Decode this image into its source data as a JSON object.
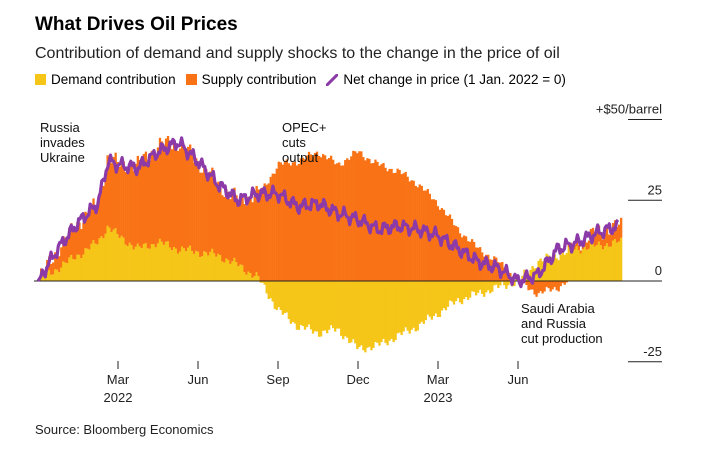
{
  "title": "What Drives Oil Prices",
  "subtitle": "Contribution of demand and supply shocks to the change in the price of oil",
  "legend": {
    "demand": "Demand contribution",
    "supply": "Supply contribution",
    "net": "Net change in price (1 Jan. 2022 = 0)"
  },
  "source": "Source: Bloomberg Economics",
  "colors": {
    "demand": "#f5c518",
    "supply": "#f97316",
    "net": "#8b3aa8"
  },
  "chart_data": {
    "type": "area",
    "ylabel": "",
    "ylim": [
      -27,
      50
    ],
    "y_ticks": [
      {
        "value": 50,
        "label": "+$50/barrel"
      },
      {
        "value": 25,
        "label": "25"
      },
      {
        "value": 0,
        "label": "0"
      },
      {
        "value": -25,
        "label": "-25"
      }
    ],
    "x_ticks": [
      {
        "x": 2,
        "label": "Mar",
        "year": "2022"
      },
      {
        "x": 4,
        "label": "Jun",
        "year": ""
      },
      {
        "x": 6,
        "label": "Sep",
        "year": ""
      },
      {
        "x": 8,
        "label": "Dec",
        "year": ""
      },
      {
        "x": 10,
        "label": "Mar",
        "year": "2023"
      },
      {
        "x": 12,
        "label": "Jun",
        "year": ""
      }
    ],
    "x_unit": "months since 1 Jan 2022",
    "xlim": [
      0,
      14.6
    ],
    "annotations": [
      {
        "lines": [
          "Russia",
          "invades",
          "Ukraine"
        ],
        "x": 1.75
      },
      {
        "lines": [
          "OPEC+",
          "cuts",
          "output"
        ],
        "x": 6.7
      },
      {
        "lines": [
          "Saudi Arabia",
          "and Russia",
          "cut production"
        ],
        "x": 12.0
      }
    ],
    "series": [
      {
        "name": "Demand contribution",
        "x": [
          0,
          0.5,
          1,
          1.5,
          1.75,
          2,
          2.5,
          3,
          3.5,
          4,
          4.5,
          5,
          5.5,
          6,
          6.5,
          7,
          7.5,
          8,
          8.5,
          9,
          9.5,
          10,
          10.5,
          11,
          11.5,
          12,
          12.5,
          13,
          13.5,
          14,
          14.5
        ],
        "values": [
          0,
          4,
          8,
          12,
          17,
          14,
          10,
          12,
          10,
          9,
          8,
          5,
          1,
          -9,
          -14,
          -16,
          -15,
          -21,
          -20,
          -17,
          -14,
          -10,
          -6,
          -4,
          -2,
          0,
          6,
          8,
          10,
          11,
          12
        ]
      },
      {
        "name": "Supply contribution",
        "x": [
          0,
          0.5,
          1,
          1.5,
          1.75,
          2,
          2.5,
          3,
          3.5,
          4,
          4.5,
          5,
          5.5,
          6,
          6.5,
          7,
          7.5,
          8,
          8.5,
          9,
          9.5,
          10,
          10.5,
          11,
          11.5,
          12,
          12.5,
          13,
          13.5,
          14,
          14.5
        ],
        "values": [
          0,
          6,
          10,
          12,
          22,
          22,
          26,
          30,
          33,
          28,
          22,
          20,
          26,
          36,
          37,
          40,
          36,
          40,
          36,
          34,
          30,
          24,
          16,
          10,
          6,
          0,
          -4,
          -2,
          2,
          4,
          5
        ]
      },
      {
        "name": "Net change in price (1 Jan. 2022 = 0)",
        "x": [
          0,
          0.5,
          1,
          1.5,
          1.75,
          2,
          2.5,
          3,
          3.5,
          4,
          4.5,
          5,
          5.5,
          6,
          6.5,
          7,
          7.5,
          8,
          8.5,
          9,
          9.5,
          10,
          10.5,
          11,
          11.5,
          12,
          12.5,
          13,
          13.5,
          14,
          14.5
        ],
        "values": [
          0,
          10,
          18,
          24,
          37,
          36,
          35,
          40,
          43,
          37,
          30,
          25,
          27,
          27,
          23,
          24,
          21,
          19,
          16,
          17,
          16,
          14,
          10,
          6,
          4,
          0,
          2,
          10,
          12,
          15,
          17
        ]
      }
    ]
  }
}
